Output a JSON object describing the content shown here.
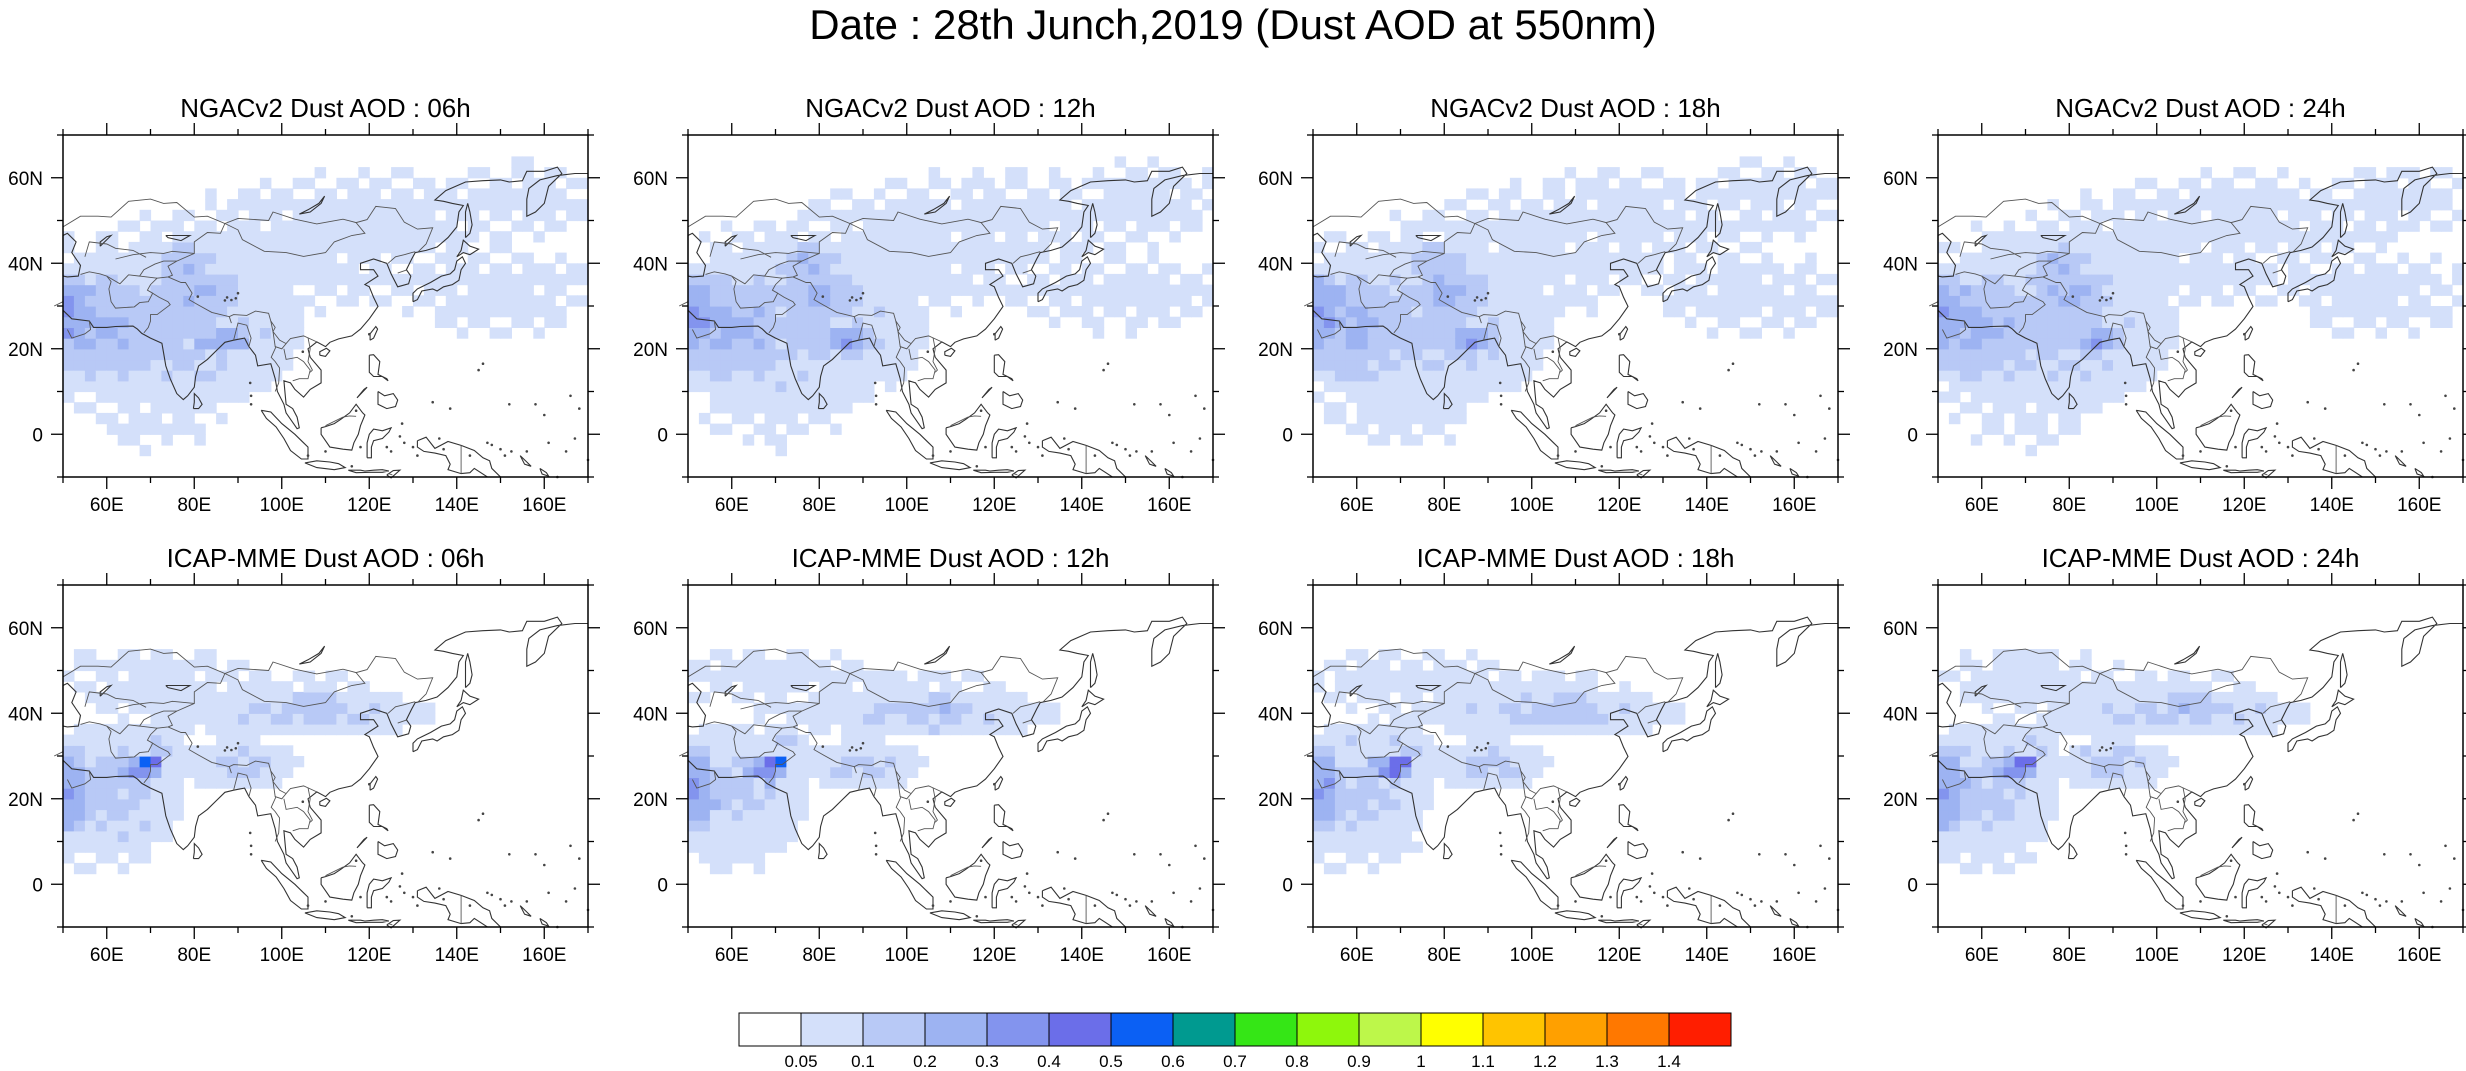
{
  "title": "Date : 28th Junch,2019 (Dust AOD at 550nm)",
  "panels": [
    {
      "title": "NGACv2 Dust AOD : 06h",
      "model": "NGACv2",
      "hour": "06h"
    },
    {
      "title": "NGACv2 Dust AOD : 12h",
      "model": "NGACv2",
      "hour": "12h"
    },
    {
      "title": "NGACv2 Dust AOD : 18h",
      "model": "NGACv2",
      "hour": "18h"
    },
    {
      "title": "NGACv2 Dust AOD : 24h",
      "model": "NGACv2",
      "hour": "24h"
    },
    {
      "title": "ICAP-MME Dust AOD : 06h",
      "model": "ICAP-MME",
      "hour": "06h"
    },
    {
      "title": "ICAP-MME Dust AOD : 12h",
      "model": "ICAP-MME",
      "hour": "12h"
    },
    {
      "title": "ICAP-MME Dust AOD : 18h",
      "model": "ICAP-MME",
      "hour": "18h"
    },
    {
      "title": "ICAP-MME Dust AOD : 24h",
      "model": "ICAP-MME",
      "hour": "24h"
    }
  ],
  "axes": {
    "lon_range": [
      50,
      170
    ],
    "lat_range": [
      -10,
      70
    ],
    "x_ticks": [
      "60E",
      "80E",
      "100E",
      "120E",
      "140E",
      "160E"
    ],
    "x_tick_values": [
      60,
      80,
      100,
      120,
      140,
      160
    ],
    "y_ticks": [
      "0",
      "20N",
      "40N",
      "60N"
    ],
    "y_tick_values": [
      0,
      20,
      40,
      60
    ]
  },
  "colorbar": {
    "labels": [
      "0.05",
      "0.1",
      "0.2",
      "0.3",
      "0.4",
      "0.5",
      "0.6",
      "0.7",
      "0.8",
      "0.9",
      "1",
      "1.1",
      "1.2",
      "1.3",
      "1.4"
    ],
    "colors": [
      "#ffffff",
      "#d4e0fa",
      "#b8c9f6",
      "#9db3f2",
      "#8394ee",
      "#6b6ee9",
      "#0b60f4",
      "#009a90",
      "#35e616",
      "#8ef70c",
      "#bdf74a",
      "#ffff00",
      "#ffc400",
      "#ffa000",
      "#ff7800",
      "#ff1e00"
    ]
  }
}
